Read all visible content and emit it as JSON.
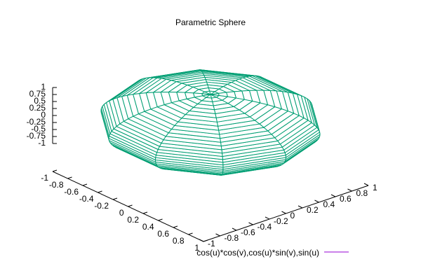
{
  "chart_data": {
    "type": "parametric-surface",
    "title": "Parametric Sphere",
    "series": [
      {
        "name": "cos(u)*cos(v),cos(u)*sin(v),sin(u)",
        "color": "#009e73",
        "key_color": "#9400d3"
      }
    ],
    "xlim": [
      -1,
      1
    ],
    "xticks": [
      -1,
      -0.8,
      -0.6,
      -0.4,
      -0.2,
      0,
      0.2,
      0.4,
      0.6,
      0.8,
      1
    ],
    "ylim": [
      -1,
      1
    ],
    "yticks": [
      -1,
      -0.8,
      -0.6,
      -0.4,
      -0.2,
      0,
      0.2,
      0.4,
      0.6,
      0.8,
      1
    ],
    "zlim": [
      -1,
      1
    ],
    "zticks": [
      -1,
      -0.75,
      -0.5,
      -0.25,
      0,
      0.25,
      0.5,
      0.75,
      1
    ],
    "hidden3d": true
  }
}
